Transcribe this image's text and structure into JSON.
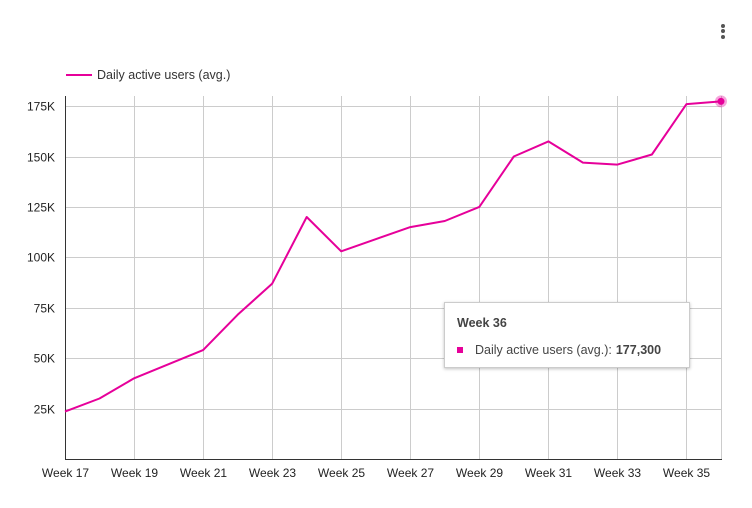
{
  "colors": {
    "series": "#e6009a",
    "grid": "#cccccc",
    "axis": "#333333",
    "text": "#222222"
  },
  "menu": {
    "icon": "more-vert-icon"
  },
  "chart_data": {
    "type": "line",
    "x": [
      "Week 17",
      "Week 18",
      "Week 19",
      "Week 20",
      "Week 21",
      "Week 22",
      "Week 23",
      "Week 24",
      "Week 25",
      "Week 26",
      "Week 27",
      "Week 28",
      "Week 29",
      "Week 30",
      "Week 31",
      "Week 32",
      "Week 33",
      "Week 34",
      "Week 35",
      "Week 36"
    ],
    "x_tick_labels": [
      "Week 17",
      "Week 19",
      "Week 21",
      "Week 23",
      "Week 25",
      "Week 27",
      "Week 29",
      "Week 31",
      "Week 33",
      "Week 35"
    ],
    "series": [
      {
        "name": "Daily active users (avg.)",
        "values": [
          23500,
          30000,
          40000,
          47000,
          54000,
          71500,
          87000,
          120000,
          103000,
          109000,
          115000,
          118000,
          125000,
          150000,
          157500,
          147000,
          146000,
          151000,
          176000,
          177300
        ]
      }
    ],
    "ylim": [
      0,
      180000
    ],
    "y_ticks": [
      25000,
      50000,
      75000,
      100000,
      125000,
      150000,
      175000
    ],
    "y_tick_labels": [
      "25K",
      "50K",
      "75K",
      "100K",
      "125K",
      "150K",
      "175K"
    ],
    "grid": true,
    "legend": "top-left",
    "xlabel": "",
    "ylabel": "",
    "tooltip": {
      "title": "Week 36",
      "series_label": "Daily active users (avg.):",
      "value": "177,300"
    }
  }
}
